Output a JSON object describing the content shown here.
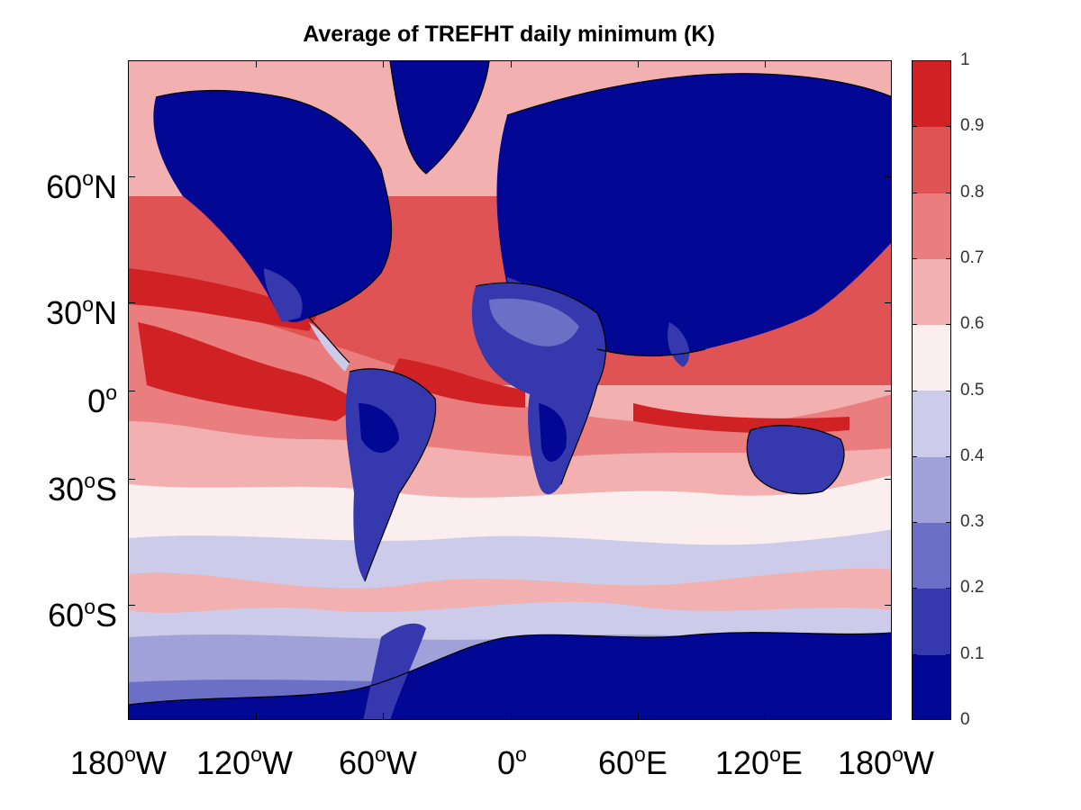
{
  "title": "Average of TREFHT daily minimum (K)",
  "lat_ticks": [
    {
      "num": "60",
      "sup": "o",
      "hem": "N"
    },
    {
      "num": "30",
      "sup": "o",
      "hem": "N"
    },
    {
      "num": "0",
      "sup": "o",
      "hem": ""
    },
    {
      "num": "30",
      "sup": "o",
      "hem": "S"
    },
    {
      "num": "60",
      "sup": "o",
      "hem": "S"
    }
  ],
  "lon_ticks": [
    {
      "num": "180",
      "sup": "o",
      "hem": "W"
    },
    {
      "num": "120",
      "sup": "o",
      "hem": "W"
    },
    {
      "num": "60",
      "sup": "o",
      "hem": "W"
    },
    {
      "num": "0",
      "sup": "o",
      "hem": ""
    },
    {
      "num": "60",
      "sup": "o",
      "hem": "E"
    },
    {
      "num": "120",
      "sup": "o",
      "hem": "E"
    },
    {
      "num": "180",
      "sup": "o",
      "hem": "W"
    }
  ],
  "colorbar": {
    "ticks": [
      "1",
      "0.9",
      "0.8",
      "0.7",
      "0.6",
      "0.5",
      "0.4",
      "0.3",
      "0.2",
      "0.1",
      "0"
    ],
    "colors_top_to_bottom": [
      "#d02224",
      "#e05355",
      "#ea7e7f",
      "#f2b0b0",
      "#fbeeee",
      "#ccccea",
      "#9fa1d8",
      "#6c6fc6",
      "#3638ad",
      "#030894"
    ]
  }
}
